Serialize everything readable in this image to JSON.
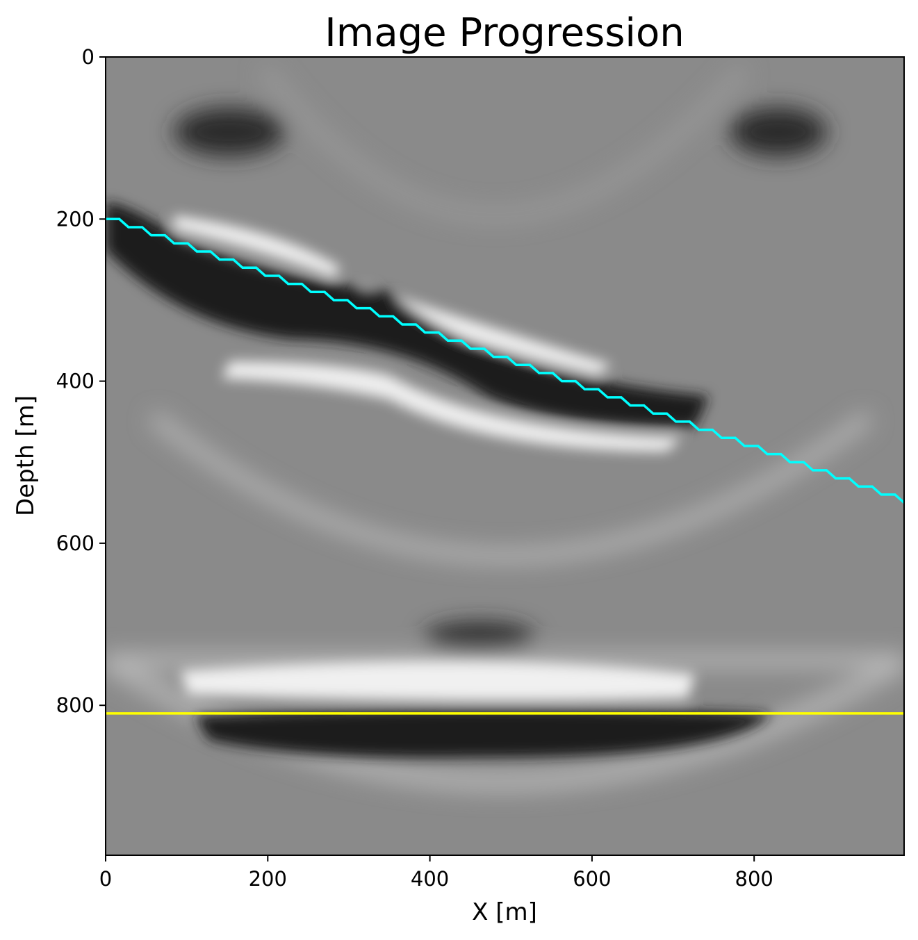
{
  "chart_data": {
    "type": "heatmap",
    "title": "Image Progression",
    "xlabel": "X [m]",
    "ylabel": "Depth [m]",
    "xlim": [
      0,
      985
    ],
    "ylim": [
      985,
      0
    ],
    "xticks": [
      0,
      200,
      400,
      600,
      800
    ],
    "yticks": [
      0,
      200,
      400,
      600,
      800
    ],
    "colormap": "gray",
    "grid": false,
    "series": [
      {
        "type": "step-line",
        "color": "#00ffff",
        "x": [
          0,
          985
        ],
        "y": [
          200,
          550
        ]
      },
      {
        "type": "line",
        "color": "#ffff00",
        "x": [
          0,
          985
        ],
        "y": [
          810,
          810
        ]
      }
    ]
  }
}
